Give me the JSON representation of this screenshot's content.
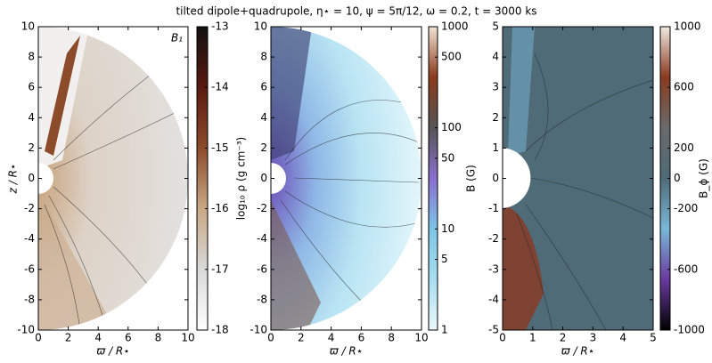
{
  "title": "tilted dipole+quadrupole, η⋆ = 10, ψ = 5π/12, ω = 0.2, t = 3000 ks",
  "chart_data": [
    {
      "type": "field",
      "xlabel": "ϖ / R⋆",
      "ylabel": "z / R⋆",
      "annotation": "B₁",
      "xlim": [
        0,
        10
      ],
      "ylim": [
        -10,
        10
      ],
      "xticks": [
        0,
        2,
        4,
        6,
        8,
        10
      ],
      "yticks": [
        -10,
        -8,
        -6,
        -4,
        -2,
        0,
        2,
        4,
        6,
        8,
        10
      ],
      "colorbar": {
        "label": "log₁₀ ρ (g cm⁻³)",
        "lim": [
          -18,
          -13
        ],
        "scale": "linear",
        "ticks": [
          -18,
          -17,
          -16,
          -15,
          -14,
          -13
        ],
        "colors": [
          "#ffffff",
          "#d9d9d9",
          "#c8a985",
          "#8c4b2b",
          "#5a1a10",
          "#111111"
        ]
      }
    },
    {
      "type": "field",
      "xlabel": "ϖ / R⋆",
      "xlim": [
        0,
        10
      ],
      "ylim": [
        -10,
        10
      ],
      "xticks": [
        0,
        2,
        4,
        6,
        8,
        10
      ],
      "yticks": [
        -10,
        -8,
        -6,
        -4,
        -2,
        0,
        2,
        4,
        6,
        8,
        10
      ],
      "colorbar": {
        "label": "B (G)",
        "lim": [
          1,
          1000
        ],
        "scale": "log",
        "ticks": [
          1,
          5,
          10,
          50,
          100,
          500,
          1000
        ],
        "colors": [
          "#eaf8fc",
          "#a9def0",
          "#7cc6e6",
          "#8a6fd0",
          "#555555",
          "#8c3a1a",
          "#f2e4d6"
        ]
      }
    },
    {
      "type": "field",
      "xlabel": "ϖ / R⋆",
      "xlim": [
        0,
        5
      ],
      "ylim": [
        -5,
        5
      ],
      "xticks": [
        0,
        1,
        2,
        3,
        4,
        5
      ],
      "yticks": [
        -5,
        -4,
        -3,
        -2,
        -1,
        0,
        1,
        2,
        3,
        4,
        5
      ],
      "colorbar": {
        "label": "B_ϕ (G)",
        "lim": [
          -1000,
          1000
        ],
        "scale": "linear",
        "ticks": [
          -1000,
          -600,
          -200,
          0,
          200,
          600,
          1000
        ],
        "colors": [
          "#000000",
          "#6a3aa0",
          "#7ab8d8",
          "#4f6b78",
          "#6a6a6a",
          "#8a3a20",
          "#f2eae2"
        ]
      }
    }
  ]
}
